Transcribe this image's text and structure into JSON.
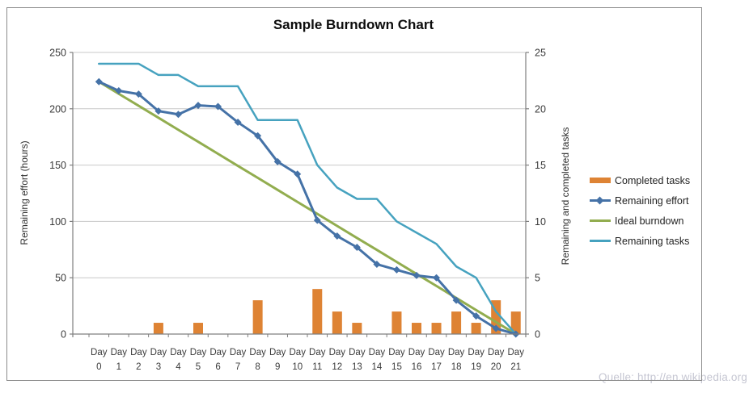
{
  "title": "Sample Burndown Chart",
  "source_note": "Quelle: http://en.wikipedia.org",
  "chart_data": {
    "type": "combo",
    "title": "Sample Burndown Chart",
    "categories": [
      "Day 0",
      "Day 1",
      "Day 2",
      "Day 3",
      "Day 4",
      "Day 5",
      "Day 6",
      "Day 7",
      "Day 8",
      "Day 9",
      "Day 10",
      "Day 11",
      "Day 12",
      "Day 13",
      "Day 14",
      "Day 15",
      "Day 16",
      "Day 17",
      "Day 18",
      "Day 19",
      "Day 20",
      "Day 21"
    ],
    "series": [
      {
        "name": "Completed tasks",
        "type": "bar",
        "axis": "right",
        "color": "#de8334",
        "values": [
          0,
          0,
          0,
          1,
          0,
          1,
          0,
          0,
          3,
          0,
          0,
          4,
          2,
          1,
          0,
          2,
          1,
          1,
          2,
          1,
          3,
          2
        ]
      },
      {
        "name": "Remaining effort",
        "type": "line",
        "axis": "left",
        "marker": "diamond",
        "color": "#4572a7",
        "values": [
          224,
          216,
          213,
          198,
          195,
          203,
          202,
          188,
          176,
          153,
          142,
          101,
          87,
          77,
          62,
          57,
          52,
          50,
          30,
          16,
          5,
          0
        ]
      },
      {
        "name": "Ideal burndown",
        "type": "line",
        "axis": "left",
        "color": "#92ad4f",
        "values": [
          224,
          213.3,
          202.7,
          192,
          181.3,
          170.7,
          160,
          149.3,
          138.7,
          128,
          117.3,
          106.7,
          96,
          85.3,
          74.7,
          64,
          53.3,
          42.7,
          32,
          21.3,
          10.7,
          0
        ]
      },
      {
        "name": "Remaining tasks",
        "type": "line",
        "axis": "right",
        "color": "#46a2bf",
        "values": [
          24,
          24,
          24,
          23,
          23,
          22,
          22,
          22,
          19,
          19,
          19,
          15,
          13,
          12,
          12,
          10,
          9,
          8,
          6,
          5,
          2,
          0
        ]
      }
    ],
    "left_axis": {
      "label": "Remaining effort (hours)",
      "min": 0,
      "max": 250,
      "ticks": [
        0,
        50,
        100,
        150,
        200,
        250
      ]
    },
    "right_axis": {
      "label": "Remaining and  completed tasks",
      "min": 0,
      "max": 25,
      "ticks": [
        0,
        5,
        10,
        15,
        20,
        25
      ]
    },
    "x_axis": {
      "tick_line1": "Day"
    },
    "legend_position": "right",
    "grid": true,
    "grid_color": "#c8c8c8",
    "axis_color": "#7f7f7f",
    "tick_text_color": "#3a3a3a"
  }
}
